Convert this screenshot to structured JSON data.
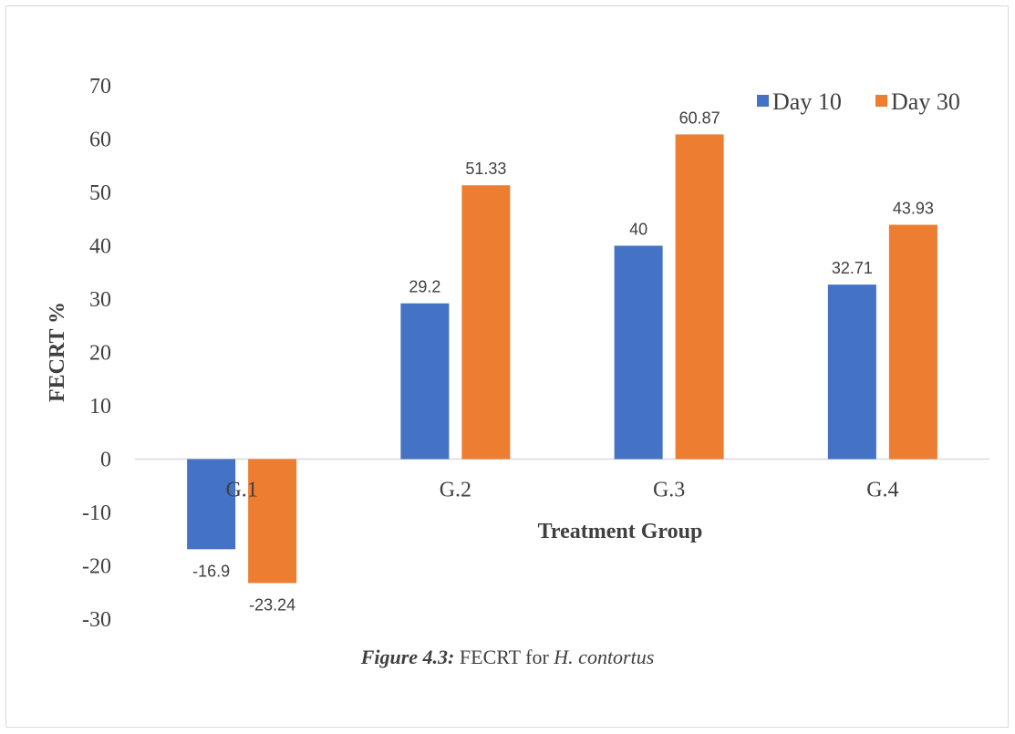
{
  "chart_data": {
    "type": "bar",
    "categories": [
      "G.1",
      "G.2",
      "G.3",
      "G.4"
    ],
    "series": [
      {
        "name": "Day 10",
        "values": [
          -16.9,
          29.2,
          40,
          32.71
        ],
        "labels": [
          "-16.9",
          "29.2",
          "40",
          "32.71"
        ],
        "color": "#4472c4"
      },
      {
        "name": "Day 30",
        "values": [
          -23.24,
          51.33,
          60.87,
          43.93
        ],
        "labels": [
          "-23.24",
          "51.33",
          "60.87",
          "43.93"
        ],
        "color": "#ed7d31"
      }
    ],
    "ylim": [
      -30,
      70
    ],
    "yticks": [
      "70",
      "60",
      "50",
      "40",
      "30",
      "20",
      "10",
      "0",
      "-10",
      "-20",
      "-30"
    ],
    "ytick_values": [
      70,
      60,
      50,
      40,
      30,
      20,
      10,
      0,
      -10,
      -20,
      -30
    ],
    "ylabel": "FECRT %",
    "xlabel": "Treatment Group",
    "legend_position": "top-right",
    "grid": false
  },
  "caption": {
    "figure_label": "Figure 4.3:",
    "text": " FECRT for ",
    "species": "H. contortus"
  }
}
